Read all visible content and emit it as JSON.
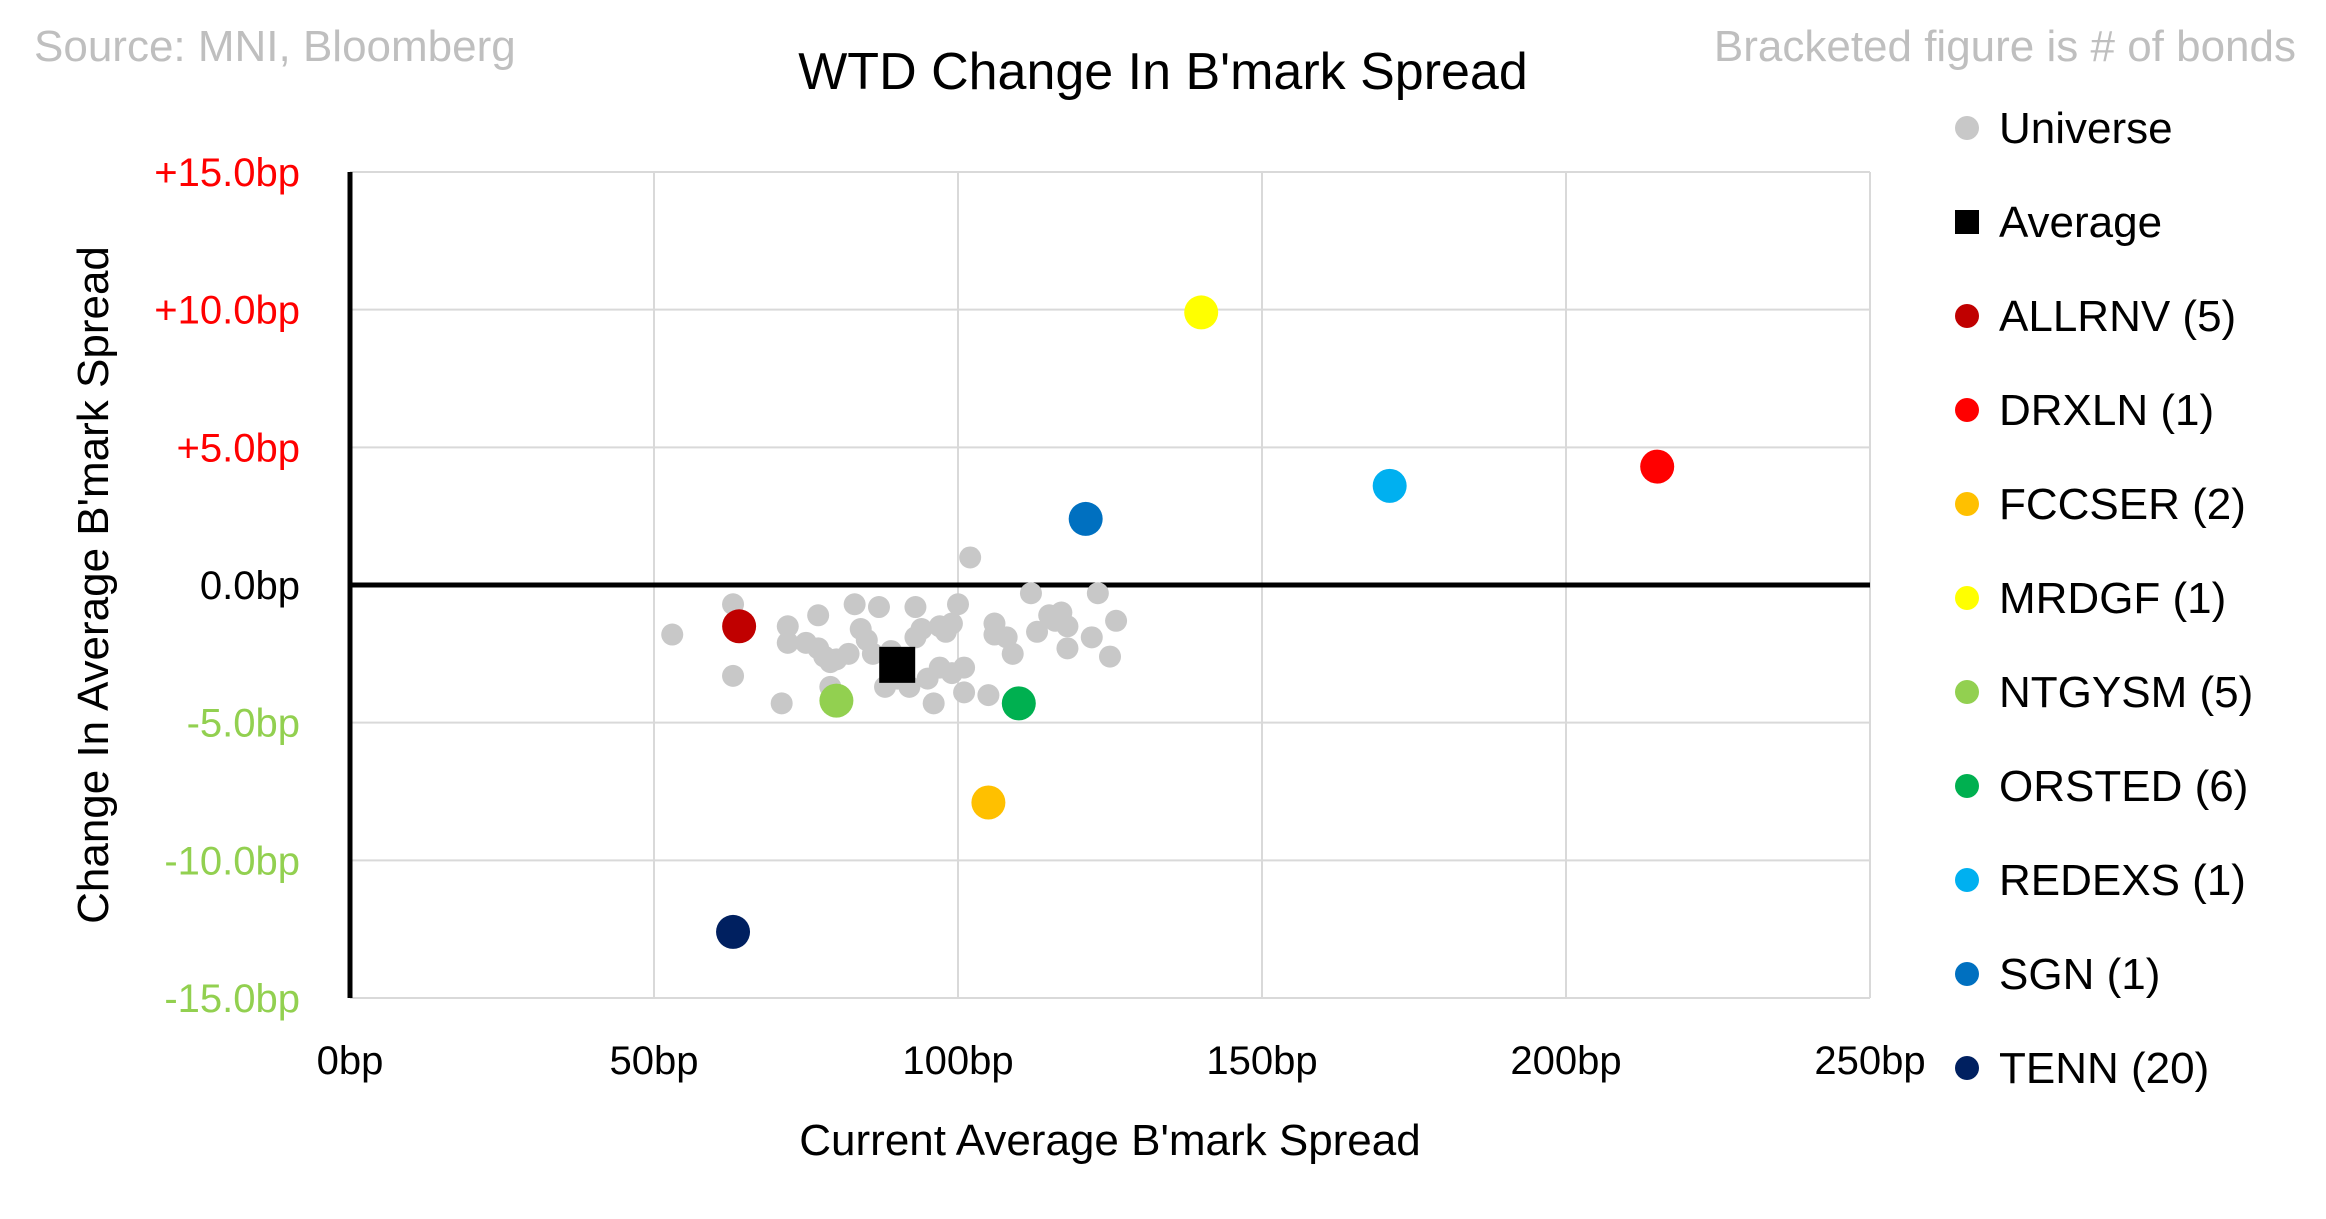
{
  "header": {
    "source": "Source: MNI, Bloomberg",
    "note": "Bracketed figure is # of bonds"
  },
  "chart_data": {
    "type": "scatter",
    "title": "WTD Change In B'mark Spread",
    "xlabel": "Current Average B'mark Spread",
    "ylabel": "Change In Average B'mark Spread",
    "xlim": [
      0,
      250
    ],
    "ylim": [
      -15,
      15
    ],
    "x_ticks": [
      {
        "value": 0,
        "label": "0bp"
      },
      {
        "value": 50,
        "label": "50bp"
      },
      {
        "value": 100,
        "label": "100bp"
      },
      {
        "value": 150,
        "label": "150bp"
      },
      {
        "value": 200,
        "label": "200bp"
      },
      {
        "value": 250,
        "label": "250bp"
      }
    ],
    "y_ticks": [
      {
        "value": 15,
        "label": "+15.0bp",
        "color": "#ff0000"
      },
      {
        "value": 10,
        "label": "+10.0bp",
        "color": "#ff0000"
      },
      {
        "value": 5,
        "label": "+5.0bp",
        "color": "#ff0000"
      },
      {
        "value": 0,
        "label": "0.0bp",
        "color": "#000000"
      },
      {
        "value": -5,
        "label": "-5.0bp",
        "color": "#92d050"
      },
      {
        "value": -10,
        "label": "-10.0bp",
        "color": "#92d050"
      },
      {
        "value": -15,
        "label": "-15.0bp",
        "color": "#92d050"
      }
    ],
    "grid": true,
    "legend_position": "right",
    "series": [
      {
        "name": "Universe",
        "marker": "circle",
        "color": "#c8c8c8",
        "points": [
          [
            53,
            -1.8
          ],
          [
            63,
            -0.7
          ],
          [
            63,
            -3.3
          ],
          [
            71,
            -4.3
          ],
          [
            72,
            -1.5
          ],
          [
            72,
            -2.1
          ],
          [
            75,
            -2.1
          ],
          [
            77,
            -2.3
          ],
          [
            77,
            -1.1
          ],
          [
            78,
            -2.6
          ],
          [
            79,
            -3.7
          ],
          [
            79,
            -2.8
          ],
          [
            80,
            -2.7
          ],
          [
            82,
            -2.5
          ],
          [
            83,
            -0.7
          ],
          [
            84,
            -1.6
          ],
          [
            85,
            -2.0
          ],
          [
            86,
            -2.5
          ],
          [
            87,
            -0.8
          ],
          [
            88,
            -3.7
          ],
          [
            89,
            -2.4
          ],
          [
            90,
            -3.4
          ],
          [
            91,
            -3.3
          ],
          [
            92,
            -3.7
          ],
          [
            93,
            -0.8
          ],
          [
            93,
            -1.9
          ],
          [
            94,
            -1.6
          ],
          [
            95,
            -3.4
          ],
          [
            96,
            -4.3
          ],
          [
            97,
            -1.5
          ],
          [
            97,
            -3.0
          ],
          [
            98,
            -1.7
          ],
          [
            99,
            -3.2
          ],
          [
            99,
            -1.4
          ],
          [
            100,
            -0.7
          ],
          [
            101,
            -3.0
          ],
          [
            101,
            -3.9
          ],
          [
            102,
            1.0
          ],
          [
            105,
            -4.0
          ],
          [
            106,
            -1.4
          ],
          [
            106,
            -1.8
          ],
          [
            108,
            -1.9
          ],
          [
            109,
            -2.5
          ],
          [
            112,
            -0.3
          ],
          [
            113,
            -1.7
          ],
          [
            115,
            -1.1
          ],
          [
            116,
            -1.3
          ],
          [
            117,
            -1.0
          ],
          [
            118,
            -2.3
          ],
          [
            118,
            -1.5
          ],
          [
            122,
            -1.9
          ],
          [
            123,
            -0.3
          ],
          [
            125,
            -2.6
          ],
          [
            126,
            -1.3
          ]
        ]
      },
      {
        "name": "Average",
        "marker": "square",
        "color": "#000000",
        "points": [
          [
            90,
            -2.9
          ]
        ]
      },
      {
        "name": "ALLRNV  (5)",
        "marker": "circle",
        "color": "#c00000",
        "points": [
          [
            64,
            -1.5
          ]
        ]
      },
      {
        "name": "DRXLN  (1)",
        "marker": "circle",
        "color": "#ff0000",
        "points": [
          [
            215,
            4.3
          ]
        ]
      },
      {
        "name": "FCCSER  (2)",
        "marker": "circle",
        "color": "#ffc000",
        "points": [
          [
            105,
            -7.9
          ]
        ]
      },
      {
        "name": "MRDGF  (1)",
        "marker": "circle",
        "color": "#ffff00",
        "points": [
          [
            140,
            9.9
          ]
        ]
      },
      {
        "name": "NTGYSM  (5)",
        "marker": "circle",
        "color": "#92d050",
        "points": [
          [
            80,
            -4.2
          ]
        ]
      },
      {
        "name": "ORSTED  (6)",
        "marker": "circle",
        "color": "#00b050",
        "points": [
          [
            110,
            -4.3
          ]
        ]
      },
      {
        "name": "REDEXS  (1)",
        "marker": "circle",
        "color": "#00b0f0",
        "points": [
          [
            171,
            3.6
          ]
        ]
      },
      {
        "name": "SGN  (1)",
        "marker": "circle",
        "color": "#0070c0",
        "points": [
          [
            121,
            2.4
          ]
        ]
      },
      {
        "name": "TENN  (20)",
        "marker": "circle",
        "color": "#002060",
        "points": [
          [
            63,
            -12.6
          ]
        ]
      }
    ]
  }
}
